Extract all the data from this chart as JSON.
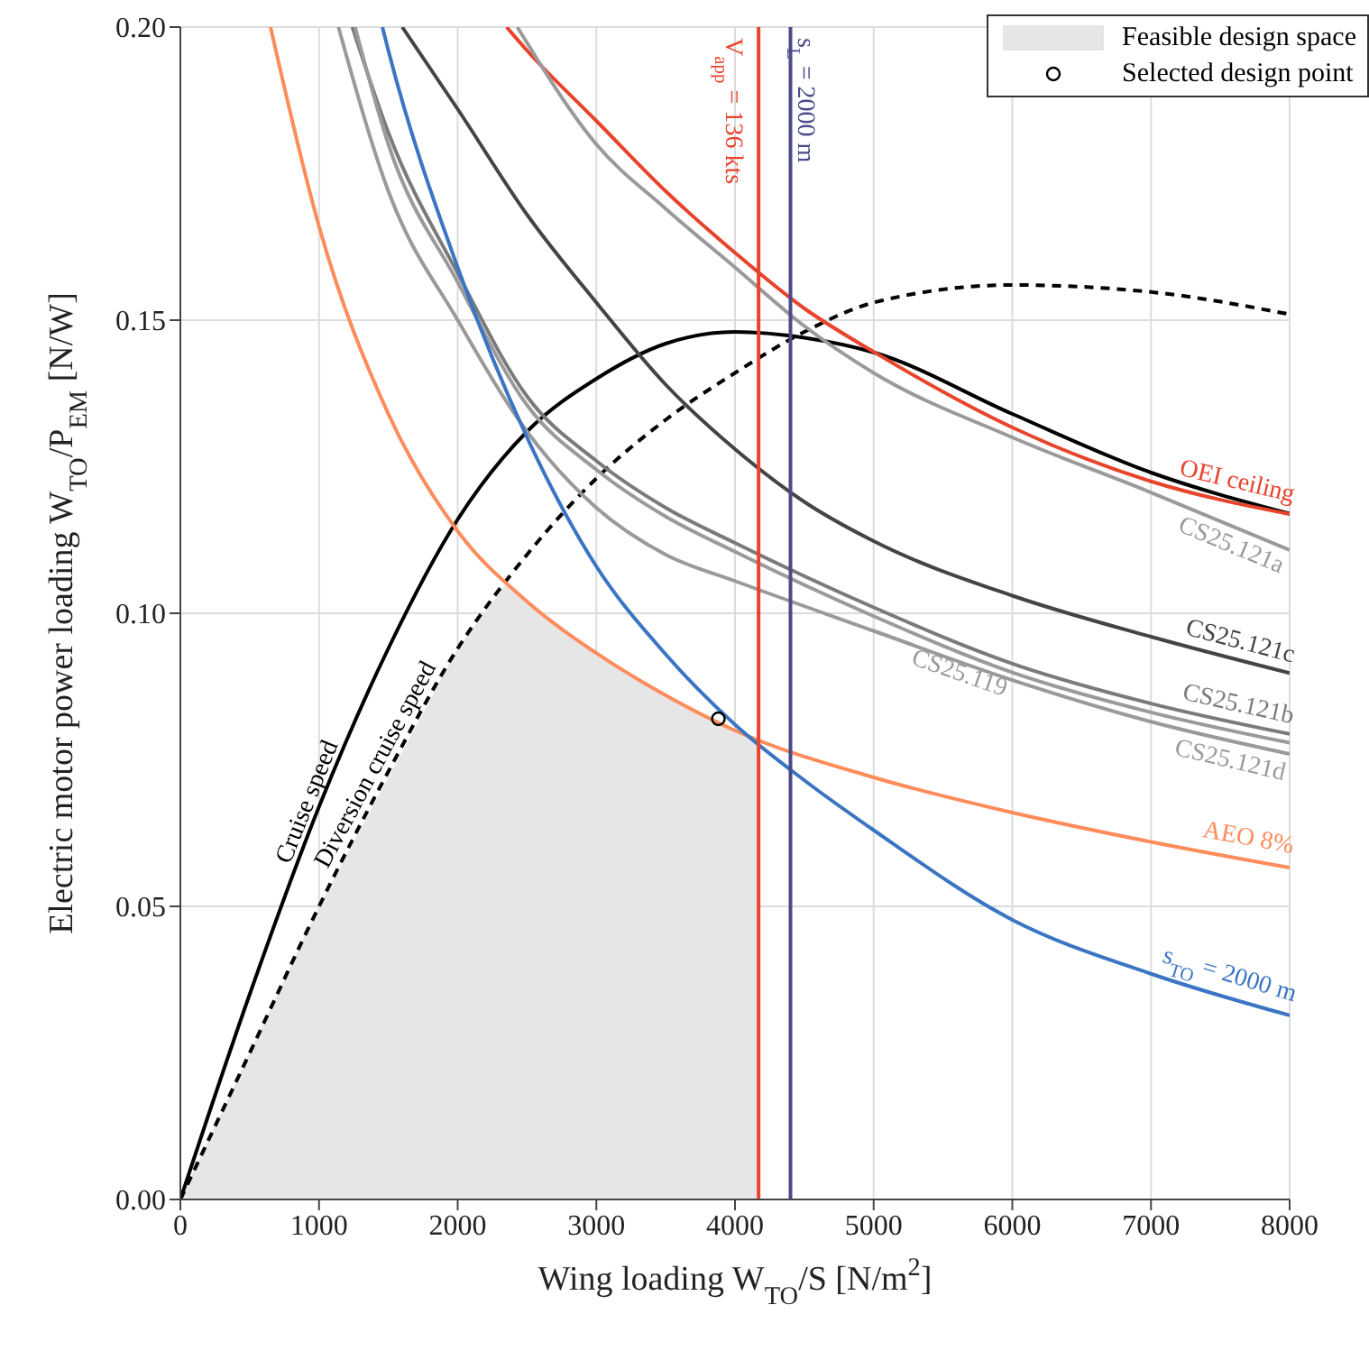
{
  "chart_data": {
    "type": "line",
    "xlabel": "Wing loading  W$_{TO}$/S  [N/m$^{2}$]",
    "ylabel": "Electric motor power loading  W$_{TO}$/P$_{EM}$  [N/W]",
    "xlim": [
      0,
      8000
    ],
    "xticks": [
      0,
      1000,
      2000,
      3000,
      4000,
      5000,
      6000,
      7000,
      8000
    ],
    "ylim": [
      0,
      0.2
    ],
    "yticks": [
      {
        "value": 0,
        "label": "0.00"
      },
      {
        "value": 0.05,
        "label": "0.05"
      },
      {
        "value": 0.1,
        "label": "0.10"
      },
      {
        "value": 0.15,
        "label": "0.15"
      },
      {
        "value": 0.2,
        "label": "0.20"
      }
    ],
    "grid": true,
    "legend": "top right",
    "series": [
      {
        "name": "Feasible design space",
        "type": "area",
        "color": "#e6e6e6",
        "x": [
          0,
          1000,
          2000,
          2350,
          3000,
          3500,
          4000,
          4170,
          4170
        ],
        "values": [
          0,
          0.05,
          0.094,
          0.105,
          0.0932,
          0.086,
          0.08,
          0.0785,
          0
        ]
      },
      {
        "name": "Selected design point",
        "type": "scatter",
        "marker": "circle",
        "color": "#000000",
        "x": [
          3880
        ],
        "values": [
          0.082
        ]
      },
      {
        "name": "Cruise speed",
        "color": "#000000",
        "x": [
          0,
          500,
          1000,
          1500,
          2000,
          2500,
          3000,
          3500,
          4000,
          4500,
          5000,
          6000,
          7000,
          8000
        ],
        "values": [
          0,
          0.035,
          0.067,
          0.094,
          0.116,
          0.131,
          0.14,
          0.146,
          0.148,
          0.147,
          0.1445,
          0.134,
          0.124,
          0.117
        ]
      },
      {
        "name": "Diversion cruise speed",
        "line_style": "dashed",
        "color": "#000000",
        "x": [
          0,
          500,
          1000,
          1500,
          2000,
          2500,
          3000,
          3500,
          4000,
          4500,
          5000,
          6000,
          7000,
          8000
        ],
        "values": [
          0,
          0.025,
          0.05,
          0.073,
          0.094,
          0.11,
          0.123,
          0.133,
          0.141,
          0.148,
          0.153,
          0.156,
          0.1548,
          0.151
        ]
      },
      {
        "name": "OEI ceiling",
        "color": "#e8432b",
        "x": [
          2353,
          2500,
          3000,
          3500,
          4000,
          4500,
          5000,
          6000,
          7000,
          8000
        ],
        "values": [
          0.2,
          0.196,
          0.184,
          0.172,
          0.1615,
          0.152,
          0.1446,
          0.1317,
          0.1225,
          0.1169
        ]
      },
      {
        "name": "CS25.121a",
        "color": "#9a9a9a",
        "x": [
          2430,
          3000,
          3500,
          4000,
          4500,
          5000,
          6000,
          7000,
          8000
        ],
        "values": [
          0.2,
          0.18,
          0.169,
          0.159,
          0.149,
          0.141,
          0.13,
          0.1206,
          0.1108
        ]
      },
      {
        "name": "CS25.121c",
        "color": "#444444",
        "x": [
          1600,
          2000,
          2500,
          3000,
          3500,
          4000,
          4500,
          5000,
          6000,
          7000,
          8000
        ],
        "values": [
          0.2,
          0.186,
          0.168,
          0.153,
          0.139,
          0.128,
          0.119,
          0.1123,
          0.103,
          0.096,
          0.0898
        ]
      },
      {
        "name": "CS25.121b",
        "color": "#7a7a7a",
        "x": [
          1240,
          1500,
          2000,
          2500,
          3000,
          3500,
          4000,
          5000,
          6000,
          7000,
          8000
        ],
        "values": [
          0.2,
          0.182,
          0.158,
          0.137,
          0.126,
          0.118,
          0.112,
          0.101,
          0.0914,
          0.0846,
          0.0794
        ]
      },
      {
        "name": "CS25.119",
        "color": "#9a9a9a",
        "x": [
          1260,
          1500,
          2000,
          2500,
          3000,
          3500,
          4000,
          5000,
          6000,
          7000,
          8000
        ],
        "values": [
          0.2,
          0.18,
          0.1565,
          0.1355,
          0.1245,
          0.1165,
          0.1105,
          0.0995,
          0.0899,
          0.0831,
          0.0779
        ]
      },
      {
        "name": "CS25.121d",
        "color": "#9a9a9a",
        "x": [
          1140,
          1500,
          2000,
          2500,
          3000,
          3500,
          4000,
          5000,
          6000,
          7000,
          8000
        ],
        "values": [
          0.2,
          0.172,
          0.15,
          0.131,
          0.118,
          0.11,
          0.1055,
          0.097,
          0.0886,
          0.0815,
          0.076
        ]
      },
      {
        "name": "AEO 8%",
        "color": "#ff8c5a",
        "x": [
          650,
          1000,
          1500,
          2000,
          2500,
          3000,
          3500,
          4000,
          5000,
          6000,
          7000,
          8000
        ],
        "values": [
          0.2,
          0.166,
          0.134,
          0.114,
          0.102,
          0.0932,
          0.086,
          0.08,
          0.072,
          0.066,
          0.061,
          0.0566
        ]
      },
      {
        "name": "s$_{TO}$ = 2000 m",
        "color": "#3a75c4",
        "x": [
          1457,
          1500,
          2000,
          2500,
          3000,
          3500,
          4000,
          4500,
          5000,
          6000,
          7000,
          8000
        ],
        "values": [
          0.2,
          0.196,
          0.159,
          0.13,
          0.108,
          0.093,
          0.081,
          0.0715,
          0.063,
          0.0477,
          0.0385,
          0.0314
        ]
      },
      {
        "name": "V$_{app}$ = 136 kts",
        "color": "#e8432b",
        "x": [
          4170,
          4170
        ],
        "values": [
          0.2,
          0
        ]
      },
      {
        "name": "s$_{L}$ = 2000 m",
        "color": "#4a4a8a",
        "x": [
          4400,
          4400
        ],
        "values": [
          0.2,
          0
        ]
      }
    ]
  }
}
